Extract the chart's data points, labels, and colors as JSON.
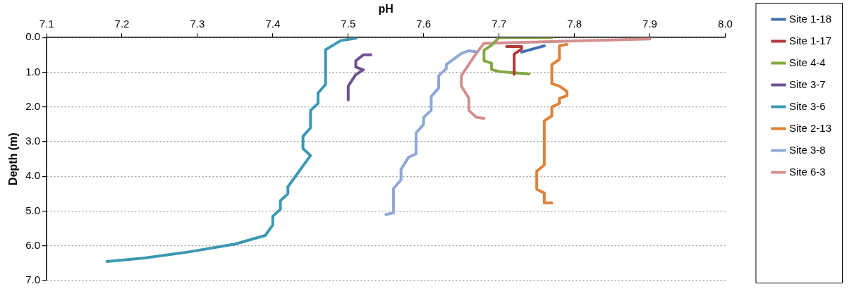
{
  "chart_data": {
    "type": "line",
    "xlabel": "pH",
    "ylabel": "Depth (m)",
    "xlim": [
      7.1,
      8.0
    ],
    "xticks": [
      {
        "value": 7.1,
        "label": "7.1"
      },
      {
        "value": 7.2,
        "label": "7.2"
      },
      {
        "value": 7.3,
        "label": "7.3"
      },
      {
        "value": 7.4,
        "label": "7.4"
      },
      {
        "value": 7.5,
        "label": "7.5"
      },
      {
        "value": 7.6,
        "label": "7.6"
      },
      {
        "value": 7.7,
        "label": "7.7"
      },
      {
        "value": 7.8,
        "label": "7.8"
      },
      {
        "value": 7.9,
        "label": "7.9"
      },
      {
        "value": 8.0,
        "label": "8.0"
      }
    ],
    "ylim": [
      7.0,
      0.0
    ],
    "yticks": [
      {
        "value": 0,
        "label": "0.0"
      },
      {
        "value": 1,
        "label": "1.0"
      },
      {
        "value": 2,
        "label": "2.0"
      },
      {
        "value": 3,
        "label": "3.0"
      },
      {
        "value": 4,
        "label": "4.0"
      },
      {
        "value": 5,
        "label": "5.0"
      },
      {
        "value": 6,
        "label": "6.0"
      },
      {
        "value": 7,
        "label": "7.0"
      }
    ],
    "grid": "y",
    "legend": "right",
    "marker": "none",
    "line_style": "solid",
    "series": [
      {
        "name": "Site 1-18",
        "color": "#3f6fb0",
        "x": [
          7.73,
          7.76
        ],
        "values": [
          0.42,
          0.24
        ]
      },
      {
        "name": "Site 1-17",
        "color": "#b23b3b",
        "x": [
          7.71,
          7.73,
          7.73,
          7.72,
          7.72
        ],
        "values": [
          0.26,
          0.26,
          0.33,
          0.48,
          1.06
        ]
      },
      {
        "name": "Site 4-4",
        "color": "#85a844",
        "x": [
          7.77,
          7.7,
          7.69,
          7.68,
          7.68,
          7.69,
          7.69,
          7.7,
          7.74
        ],
        "values": [
          0.0,
          0.0,
          0.22,
          0.37,
          0.67,
          0.74,
          0.92,
          0.98,
          1.05
        ]
      },
      {
        "name": "Site 3-7",
        "color": "#6e5291",
        "x": [
          7.53,
          7.52,
          7.51,
          7.51,
          7.52,
          7.51,
          7.5,
          7.5
        ],
        "values": [
          0.5,
          0.5,
          0.67,
          0.85,
          0.93,
          1.07,
          1.4,
          1.8
        ]
      },
      {
        "name": "Site 3-6",
        "color": "#3c99b1",
        "x": [
          7.51,
          7.49,
          7.47,
          7.47,
          7.46,
          7.46,
          7.45,
          7.45,
          7.44,
          7.44,
          7.45,
          7.44,
          7.43,
          7.42,
          7.42,
          7.41,
          7.41,
          7.4,
          7.4,
          7.39,
          7.35,
          7.29,
          7.23,
          7.18
        ],
        "values": [
          0.02,
          0.09,
          0.35,
          1.35,
          1.6,
          1.9,
          2.1,
          2.6,
          2.85,
          3.2,
          3.4,
          3.7,
          4.0,
          4.3,
          4.5,
          4.7,
          4.95,
          5.15,
          5.4,
          5.7,
          5.95,
          6.17,
          6.35,
          6.45
        ]
      },
      {
        "name": "Site 2-13",
        "color": "#e0823a",
        "x": [
          7.79,
          7.78,
          7.78,
          7.77,
          7.77,
          7.78,
          7.79,
          7.79,
          7.78,
          7.78,
          7.77,
          7.77,
          7.76,
          7.76,
          7.75,
          7.75,
          7.76,
          7.76,
          7.77
        ],
        "values": [
          0.2,
          0.24,
          0.63,
          0.78,
          1.33,
          1.4,
          1.55,
          1.68,
          1.75,
          1.9,
          2.0,
          2.26,
          2.4,
          3.67,
          3.85,
          4.37,
          4.48,
          4.76,
          4.76
        ]
      },
      {
        "name": "Site 3-8",
        "color": "#8fa9d4",
        "x": [
          7.67,
          7.66,
          7.65,
          7.63,
          7.63,
          7.62,
          7.62,
          7.61,
          7.61,
          7.6,
          7.6,
          7.59,
          7.59,
          7.58,
          7.57,
          7.57,
          7.56,
          7.56,
          7.55
        ],
        "values": [
          0.41,
          0.38,
          0.46,
          0.78,
          0.9,
          1.1,
          1.45,
          1.7,
          2.1,
          2.3,
          2.5,
          2.75,
          3.35,
          3.45,
          3.8,
          4.1,
          4.35,
          5.05,
          5.1
        ]
      },
      {
        "name": "Site 6-3",
        "color": "#d48f8f",
        "x": [
          7.9,
          7.68,
          7.67,
          7.65,
          7.65,
          7.66,
          7.66,
          7.67,
          7.68
        ],
        "values": [
          0.04,
          0.17,
          0.45,
          1.1,
          1.4,
          1.75,
          2.1,
          2.3,
          2.33
        ]
      }
    ]
  }
}
